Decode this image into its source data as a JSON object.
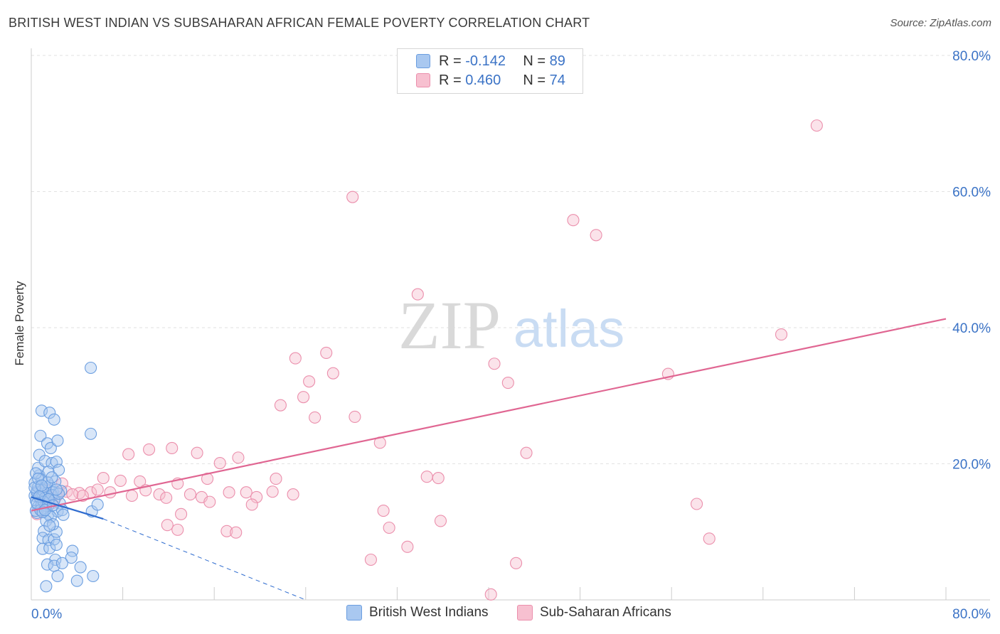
{
  "header": {
    "title": "BRITISH WEST INDIAN VS SUBSAHARAN AFRICAN FEMALE POVERTY CORRELATION CHART",
    "source": "Source: ZipAtlas.com"
  },
  "watermark": {
    "zip": "ZIP",
    "atlas": "atlas"
  },
  "legend_top": {
    "rows": [
      {
        "r_label": "R =",
        "r_value": "-0.142",
        "n_label": "N =",
        "n_value": "89",
        "color": "#a9c8f0",
        "border": "#6b9ee0"
      },
      {
        "r_label": "R =",
        "r_value": "0.460",
        "n_label": "N =",
        "n_value": "74",
        "color": "#f7c0d0",
        "border": "#eb8fac"
      }
    ]
  },
  "legend_bottom": {
    "items": [
      {
        "label": "British West Indians",
        "color": "#a9c8f0",
        "border": "#6b9ee0"
      },
      {
        "label": "Sub-Saharan Africans",
        "color": "#f7c0d0",
        "border": "#eb8fac"
      }
    ]
  },
  "chart_data": {
    "type": "scatter",
    "title": "BRITISH WEST INDIAN VS SUBSAHARAN AFRICAN FEMALE POVERTY CORRELATION CHART",
    "xlabel": "",
    "ylabel": "Female Poverty",
    "xlim": [
      0,
      80
    ],
    "ylim": [
      0,
      80
    ],
    "x_tick_labels": [
      "0.0%",
      "80.0%"
    ],
    "y_ticks": [
      20,
      40,
      60,
      80
    ],
    "y_tick_labels": [
      "20.0%",
      "40.0%",
      "60.0%",
      "80.0%"
    ],
    "grid": true,
    "colors": {
      "blue": "#6b9ee0",
      "blue_line": "#2f6ccf",
      "pink": "#eb8fac",
      "pink_line": "#e06692",
      "axis_label": "#3b73c6"
    },
    "series": [
      {
        "name": "British West Indians",
        "r": -0.142,
        "n": 89,
        "trend": {
          "x": [
            0,
            6.3
          ],
          "y": [
            15.1,
            11.9
          ]
        },
        "trend_ext": {
          "x": [
            6.3,
            24
          ],
          "y": [
            11.9,
            0
          ]
        },
        "points": [
          [
            0.3,
            15.3
          ],
          [
            0.4,
            14.6
          ],
          [
            0.5,
            16.0
          ],
          [
            0.6,
            13.7
          ],
          [
            0.3,
            17.2
          ],
          [
            0.7,
            18.3
          ],
          [
            0.5,
            12.8
          ],
          [
            0.8,
            14.9
          ],
          [
            1.0,
            15.6
          ],
          [
            1.1,
            13.4
          ],
          [
            1.2,
            16.4
          ],
          [
            0.9,
            17.7
          ],
          [
            1.3,
            14.2
          ],
          [
            1.4,
            15.1
          ],
          [
            1.5,
            12.6
          ],
          [
            1.6,
            16.8
          ],
          [
            0.6,
            19.4
          ],
          [
            0.7,
            21.3
          ],
          [
            0.8,
            24.1
          ],
          [
            0.9,
            27.8
          ],
          [
            1.6,
            27.5
          ],
          [
            2.0,
            26.5
          ],
          [
            1.4,
            23.0
          ],
          [
            1.2,
            20.4
          ],
          [
            1.7,
            22.3
          ],
          [
            1.8,
            20.1
          ],
          [
            2.3,
            23.4
          ],
          [
            2.2,
            20.3
          ],
          [
            2.4,
            19.1
          ],
          [
            2.1,
            17.4
          ],
          [
            1.9,
            15.8
          ],
          [
            2.6,
            16.0
          ],
          [
            2.5,
            14.2
          ],
          [
            2.3,
            13.0
          ],
          [
            2.7,
            13.2
          ],
          [
            1.7,
            12.2
          ],
          [
            1.3,
            11.6
          ],
          [
            1.1,
            10.1
          ],
          [
            1.0,
            9.1
          ],
          [
            1.5,
            8.8
          ],
          [
            2.0,
            8.9
          ],
          [
            2.2,
            10.0
          ],
          [
            1.9,
            11.1
          ],
          [
            2.8,
            12.5
          ],
          [
            1.0,
            7.5
          ],
          [
            1.6,
            7.6
          ],
          [
            2.2,
            8.1
          ],
          [
            3.6,
            7.2
          ],
          [
            3.5,
            6.2
          ],
          [
            2.1,
            5.9
          ],
          [
            1.4,
            5.2
          ],
          [
            2.0,
            5.0
          ],
          [
            2.7,
            5.4
          ],
          [
            4.3,
            4.8
          ],
          [
            2.3,
            3.5
          ],
          [
            5.4,
            3.5
          ],
          [
            4.0,
            2.8
          ],
          [
            1.3,
            2.0
          ],
          [
            5.2,
            34.1
          ],
          [
            5.2,
            24.4
          ],
          [
            5.3,
            13.0
          ],
          [
            5.8,
            14.0
          ],
          [
            0.4,
            13.1
          ],
          [
            0.5,
            15.8
          ],
          [
            0.6,
            16.6
          ],
          [
            0.9,
            14.0
          ],
          [
            1.0,
            16.1
          ],
          [
            1.2,
            15.0
          ],
          [
            1.3,
            13.8
          ],
          [
            0.8,
            13.2
          ],
          [
            1.4,
            17.3
          ],
          [
            1.5,
            18.8
          ],
          [
            1.8,
            15.4
          ],
          [
            2.0,
            14.6
          ],
          [
            2.4,
            15.6
          ],
          [
            0.4,
            18.6
          ],
          [
            0.3,
            16.5
          ],
          [
            1.1,
            14.4
          ],
          [
            0.7,
            15.2
          ],
          [
            1.0,
            12.9
          ],
          [
            0.5,
            14.2
          ],
          [
            0.6,
            17.8
          ],
          [
            0.9,
            16.8
          ],
          [
            1.2,
            13.2
          ],
          [
            1.5,
            14.8
          ],
          [
            2.2,
            16.2
          ],
          [
            1.9,
            13.9
          ],
          [
            1.8,
            18.0
          ],
          [
            1.6,
            10.9
          ]
        ]
      },
      {
        "name": "Sub-Saharan Africans",
        "r": 0.46,
        "n": 74,
        "trend": {
          "x": [
            0,
            80
          ],
          "y": [
            13.1,
            41.3
          ]
        },
        "points": [
          [
            68.7,
            69.7
          ],
          [
            28.1,
            59.2
          ],
          [
            47.4,
            55.8
          ],
          [
            49.4,
            53.6
          ],
          [
            33.8,
            44.9
          ],
          [
            65.6,
            39.0
          ],
          [
            25.8,
            36.3
          ],
          [
            23.1,
            35.5
          ],
          [
            40.5,
            34.7
          ],
          [
            26.4,
            33.3
          ],
          [
            55.7,
            33.2
          ],
          [
            24.3,
            32.1
          ],
          [
            41.7,
            31.9
          ],
          [
            23.8,
            29.8
          ],
          [
            21.8,
            28.6
          ],
          [
            24.8,
            26.8
          ],
          [
            28.3,
            26.9
          ],
          [
            30.5,
            23.1
          ],
          [
            43.3,
            21.6
          ],
          [
            8.5,
            21.4
          ],
          [
            10.3,
            22.1
          ],
          [
            12.3,
            22.3
          ],
          [
            14.5,
            21.6
          ],
          [
            18.1,
            20.9
          ],
          [
            16.5,
            20.1
          ],
          [
            6.3,
            17.9
          ],
          [
            7.8,
            17.5
          ],
          [
            9.5,
            17.4
          ],
          [
            12.8,
            17.1
          ],
          [
            15.4,
            17.8
          ],
          [
            21.4,
            17.8
          ],
          [
            34.6,
            18.1
          ],
          [
            35.6,
            17.9
          ],
          [
            2.7,
            17.1
          ],
          [
            3.1,
            15.9
          ],
          [
            4.2,
            15.7
          ],
          [
            5.2,
            15.8
          ],
          [
            6.9,
            15.8
          ],
          [
            8.8,
            15.3
          ],
          [
            10.0,
            16.1
          ],
          [
            11.2,
            15.5
          ],
          [
            11.8,
            15.0
          ],
          [
            13.9,
            15.5
          ],
          [
            14.9,
            15.1
          ],
          [
            15.6,
            14.4
          ],
          [
            17.3,
            15.8
          ],
          [
            18.8,
            15.8
          ],
          [
            19.7,
            15.1
          ],
          [
            21.1,
            15.9
          ],
          [
            22.9,
            15.5
          ],
          [
            19.3,
            14.0
          ],
          [
            13.1,
            12.6
          ],
          [
            11.9,
            11.0
          ],
          [
            12.8,
            10.3
          ],
          [
            17.1,
            10.1
          ],
          [
            17.9,
            9.9
          ],
          [
            30.8,
            13.1
          ],
          [
            31.3,
            10.6
          ],
          [
            35.8,
            11.6
          ],
          [
            32.9,
            7.8
          ],
          [
            29.7,
            5.9
          ],
          [
            42.4,
            5.4
          ],
          [
            40.2,
            0.8
          ],
          [
            58.2,
            14.1
          ],
          [
            59.3,
            9.0
          ],
          [
            1.3,
            16.1
          ],
          [
            2.2,
            15.2
          ],
          [
            3.6,
            15.5
          ],
          [
            0.7,
            15.1
          ],
          [
            1.8,
            14.2
          ],
          [
            2.4,
            15.6
          ],
          [
            0.5,
            12.6
          ],
          [
            4.5,
            15.3
          ],
          [
            5.8,
            16.2
          ]
        ]
      }
    ]
  }
}
